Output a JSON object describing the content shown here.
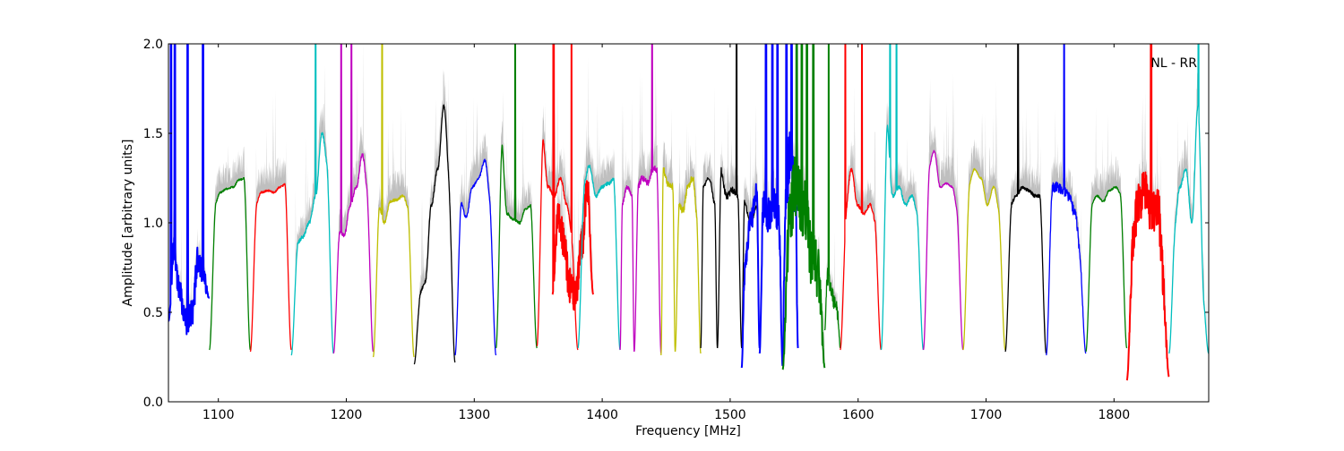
{
  "chart_data": {
    "type": "line",
    "title": "",
    "annotation": "NL - RR",
    "xlabel": "Frequency [MHz]",
    "ylabel": "Amplitude [arbitrary units]",
    "xlim": [
      1061,
      1874
    ],
    "ylim": [
      0,
      2
    ],
    "xticks": [
      1100,
      1200,
      1300,
      1400,
      1500,
      1600,
      1700,
      1800
    ],
    "yticks": [
      0.0,
      0.5,
      1.0,
      1.5,
      2.0
    ],
    "ytick_labels": [
      "0.0",
      "0.5",
      "1.0",
      "1.5",
      "2.0"
    ],
    "grid": false,
    "envelope_color": "#bfbfbf",
    "colors": {
      "b": "#0000ff",
      "g": "#008000",
      "r": "#ff0000",
      "c": "#00bfbf",
      "m": "#bf00bf",
      "y": "#bfbf00",
      "k": "#000000"
    },
    "bands": [
      {
        "start": 1061,
        "end": 1093,
        "color": "b",
        "edge": [
          0.45,
          0.58
        ],
        "levels": [
          0.9,
          0.6,
          0.45,
          0.5,
          0.8,
          0.7
        ],
        "noise": 0.08,
        "spikes": [
          1063,
          1066,
          1076,
          1088
        ]
      },
      {
        "start": 1093,
        "end": 1125,
        "color": "g",
        "edge": [
          0.29,
          0.29
        ],
        "levels": [
          1.1,
          1.17,
          1.19,
          1.2,
          1.24,
          1.25
        ],
        "noise": 0.005,
        "spikes": []
      },
      {
        "start": 1125,
        "end": 1157,
        "color": "r",
        "edge": [
          0.28,
          0.29
        ],
        "levels": [
          1.1,
          1.17,
          1.18,
          1.17,
          1.2,
          1.22
        ],
        "noise": 0.005,
        "spikes": []
      },
      {
        "start": 1157,
        "end": 1190,
        "color": "c",
        "edge": [
          0.26,
          0.27
        ],
        "levels": [
          0.88,
          0.92,
          1.0,
          1.15,
          1.5,
          1.3
        ],
        "noise": 0.01,
        "spikes": [
          1176
        ]
      },
      {
        "start": 1190,
        "end": 1221,
        "color": "m",
        "edge": [
          0.27,
          0.28
        ],
        "levels": [
          0.95,
          0.93,
          1.1,
          1.2,
          1.38,
          1.15
        ],
        "noise": 0.01,
        "spikes": [
          1196,
          1204
        ]
      },
      {
        "start": 1221,
        "end": 1253,
        "color": "y",
        "edge": [
          0.25,
          0.25
        ],
        "levels": [
          1.1,
          1.0,
          1.12,
          1.13,
          1.15,
          1.08
        ],
        "noise": 0.008,
        "spikes": [
          1228
        ]
      },
      {
        "start": 1253,
        "end": 1285,
        "color": "k",
        "edge": [
          0.21,
          0.22
        ],
        "levels": [
          0.6,
          0.67,
          1.1,
          1.3,
          1.65,
          1.2
        ],
        "noise": 0.01,
        "spikes": []
      },
      {
        "start": 1285,
        "end": 1317,
        "color": "b",
        "edge": [
          0.26,
          0.26
        ],
        "levels": [
          1.13,
          1.03,
          1.2,
          1.25,
          1.35,
          1.1
        ],
        "noise": 0.008,
        "spikes": []
      },
      {
        "start": 1317,
        "end": 1349,
        "color": "g",
        "edge": [
          0.3,
          0.3
        ],
        "levels": [
          1.48,
          1.05,
          1.02,
          1.0,
          1.08,
          1.1
        ],
        "noise": 0.008,
        "spikes": [
          1332
        ]
      },
      {
        "start": 1349,
        "end": 1381,
        "color": "r",
        "edge": [
          0.31,
          0.29
        ],
        "levels": [
          1.5,
          1.2,
          1.15,
          1.25,
          1.1,
          0.9
        ],
        "noise": 0.01,
        "spikes": [
          1376
        ]
      },
      {
        "start": 1361,
        "end": 1393,
        "color": "r",
        "edge": [
          0.6,
          0.6
        ],
        "levels": [
          1.1,
          0.9,
          0.65,
          0.6,
          0.9,
          1.25
        ],
        "noise": 0.1,
        "spikes": [
          1362
        ]
      },
      {
        "start": 1381,
        "end": 1414,
        "color": "c",
        "edge": [
          0.3,
          0.29
        ],
        "levels": [
          1.2,
          1.32,
          1.15,
          1.2,
          1.22,
          1.25
        ],
        "noise": 0.01,
        "spikes": []
      },
      {
        "start": 1414,
        "end": 1425,
        "color": "m",
        "edge": [
          0.29,
          0.28
        ],
        "levels": [
          1.1,
          1.2,
          1.15
        ],
        "noise": 0.01,
        "spikes": []
      },
      {
        "start": 1425,
        "end": 1446,
        "color": "m",
        "edge": [
          0.28,
          0.27
        ],
        "levels": [
          1.2,
          1.25,
          1.22,
          1.3,
          1.3
        ],
        "noise": 0.02,
        "spikes": [
          1439
        ]
      },
      {
        "start": 1446,
        "end": 1457,
        "color": "y",
        "edge": [
          0.26,
          0.28
        ],
        "levels": [
          1.3,
          1.22,
          1.2
        ],
        "noise": 0.02,
        "spikes": [
          1460
        ]
      },
      {
        "start": 1457,
        "end": 1477,
        "color": "y",
        "edge": [
          0.28,
          0.27
        ],
        "levels": [
          1.1,
          1.07,
          1.2,
          1.25,
          1.0
        ],
        "noise": 0.02,
        "spikes": []
      },
      {
        "start": 1477,
        "end": 1490,
        "color": "k",
        "edge": [
          0.3,
          0.3
        ],
        "levels": [
          1.2,
          1.25,
          1.1
        ],
        "noise": 0.01,
        "spikes": []
      },
      {
        "start": 1490,
        "end": 1509,
        "color": "k",
        "edge": [
          0.3,
          0.3
        ],
        "levels": [
          1.3,
          1.15,
          1.18,
          1.15
        ],
        "noise": 0.02,
        "spikes": [
          1505
        ]
      },
      {
        "start": 1509,
        "end": 1523,
        "color": "k",
        "edge": [
          0.3,
          0.3
        ],
        "levels": [
          1.12,
          1.0,
          1.1
        ],
        "noise": 0.01,
        "spikes": []
      },
      {
        "start": 1509,
        "end": 1523,
        "color": "b",
        "edge": [
          0.19,
          0.3
        ],
        "levels": [
          0.7,
          1.0,
          1.2
        ],
        "noise": 0.06,
        "spikes": []
      },
      {
        "start": 1523,
        "end": 1541,
        "color": "b",
        "edge": [
          0.27,
          0.2
        ],
        "levels": [
          1.1,
          1.05,
          1.1,
          1.0
        ],
        "noise": 0.1,
        "spikes": [
          1528,
          1533,
          1537
        ]
      },
      {
        "start": 1541,
        "end": 1553,
        "color": "b",
        "edge": [
          0.2,
          0.3
        ],
        "levels": [
          1.0,
          1.4,
          1.1
        ],
        "noise": 0.15,
        "spikes": [
          1544,
          1548
        ]
      },
      {
        "start": 1541,
        "end": 1574,
        "color": "g",
        "edge": [
          0.18,
          0.19
        ],
        "levels": [
          1.0,
          1.2,
          1.1,
          0.8,
          0.75
        ],
        "noise": 0.18,
        "spikes": [
          1552,
          1556,
          1560,
          1565
        ]
      },
      {
        "start": 1574,
        "end": 1586,
        "color": "g",
        "edge": [
          0.4,
          0.3
        ],
        "levels": [
          0.7,
          0.5
        ],
        "noise": 0.05,
        "spikes": [
          1577
        ]
      },
      {
        "start": 1586,
        "end": 1618,
        "color": "r",
        "edge": [
          0.29,
          0.29
        ],
        "levels": [
          1.05,
          1.3,
          1.1,
          1.05,
          1.1,
          1.0
        ],
        "noise": 0.01,
        "spikes": [
          1590,
          1603
        ]
      },
      {
        "start": 1618,
        "end": 1651,
        "color": "c",
        "edge": [
          0.29,
          0.29
        ],
        "levels": [
          1.6,
          1.15,
          1.2,
          1.1,
          1.15,
          1.05
        ],
        "noise": 0.01,
        "spikes": [
          1625,
          1630
        ]
      },
      {
        "start": 1651,
        "end": 1682,
        "color": "m",
        "edge": [
          0.29,
          0.29
        ],
        "levels": [
          1.3,
          1.4,
          1.2,
          1.22,
          1.2,
          1.05
        ],
        "noise": 0.005,
        "spikes": []
      },
      {
        "start": 1682,
        "end": 1715,
        "color": "y",
        "edge": [
          0.29,
          0.29
        ],
        "levels": [
          1.2,
          1.3,
          1.25,
          1.1,
          1.2,
          1.05
        ],
        "noise": 0.005,
        "spikes": []
      },
      {
        "start": 1715,
        "end": 1747,
        "color": "k",
        "edge": [
          0.28,
          0.27
        ],
        "levels": [
          1.1,
          1.15,
          1.2,
          1.18,
          1.15,
          1.15
        ],
        "noise": 0.01,
        "spikes": [
          1725
        ]
      },
      {
        "start": 1747,
        "end": 1778,
        "color": "b",
        "edge": [
          0.26,
          0.27
        ],
        "levels": [
          1.2,
          1.2,
          1.18,
          1.15,
          1.05,
          0.8
        ],
        "noise": 0.03,
        "spikes": [
          1761
        ]
      },
      {
        "start": 1778,
        "end": 1810,
        "color": "g",
        "edge": [
          0.28,
          0.3
        ],
        "levels": [
          1.1,
          1.15,
          1.12,
          1.18,
          1.2,
          1.15
        ],
        "noise": 0.005,
        "spikes": []
      },
      {
        "start": 1810,
        "end": 1843,
        "color": "r",
        "edge": [
          0.12,
          0.14
        ],
        "levels": [
          0.9,
          1.1,
          1.2,
          1.05,
          1.1,
          0.7
        ],
        "noise": 0.12,
        "spikes": [
          1829
        ]
      },
      {
        "start": 1843,
        "end": 1874,
        "color": "c",
        "edge": [
          0.27,
          0.27
        ],
        "levels": [
          0.95,
          1.2,
          1.3,
          1.0,
          1.65,
          0.6
        ],
        "noise": 0.01,
        "spikes": [
          1866
        ]
      }
    ]
  }
}
